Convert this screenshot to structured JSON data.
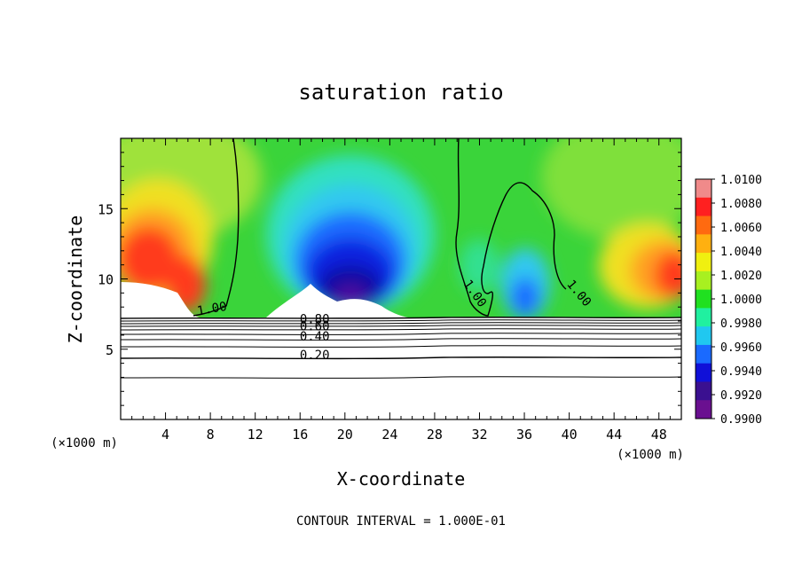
{
  "chart_data": {
    "type": "heatmap",
    "title": "saturation ratio",
    "xlabel": "X-coordinate",
    "ylabel": "Z-coordinate",
    "x_unit_left": "(×1000 m)",
    "x_unit_right": "(×1000 m)",
    "xlim": [
      0,
      50
    ],
    "ylim": [
      0,
      20
    ],
    "x_ticks": [
      4,
      8,
      12,
      16,
      20,
      24,
      28,
      32,
      36,
      40,
      44,
      48
    ],
    "y_ticks": [
      5,
      10,
      15
    ],
    "footer": "CONTOUR INTERVAL = 1.000E-01",
    "colorbar": {
      "min": 0.99,
      "max": 1.01,
      "labels": [
        "1.0100",
        "1.0080",
        "1.0060",
        "1.0040",
        "1.0020",
        "1.0000",
        "0.9980",
        "0.9960",
        "0.9940",
        "0.9920",
        "0.9900"
      ]
    },
    "contour_labels": [
      {
        "text": "1.00",
        "x": 8.2,
        "y": 7.6,
        "rot": -10
      },
      {
        "text": "1.00",
        "x": 31.3,
        "y": 8.8,
        "rot": 55
      },
      {
        "text": "1.00",
        "x": 40.6,
        "y": 8.8,
        "rot": 50
      },
      {
        "text": "0.80",
        "x": 17.3,
        "y": 6.85,
        "rot": 0
      },
      {
        "text": "0.60",
        "x": 17.3,
        "y": 6.35,
        "rot": 0
      },
      {
        "text": "0.40",
        "x": 17.3,
        "y": 5.6,
        "rot": 0
      },
      {
        "text": "0.20",
        "x": 17.3,
        "y": 4.3,
        "rot": 0
      }
    ],
    "grid": false
  }
}
